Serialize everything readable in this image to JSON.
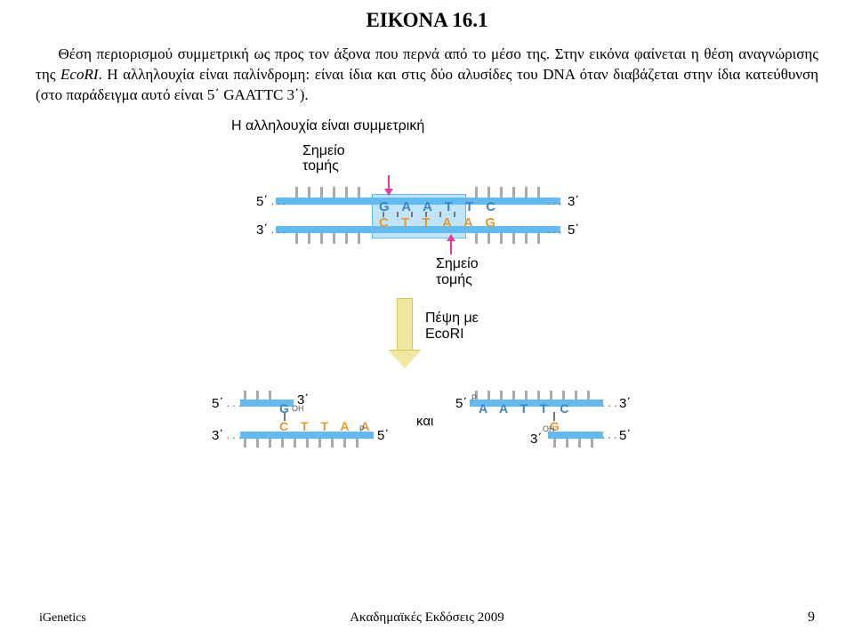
{
  "title": "ΕΙΚΟΝΑ 16.1",
  "paragraph": "Θέση περιορισμού συμμετρική ως προς τον άξονα που περνά από το μέσο της. Στην εικόνα φαίνεται η θέση αναγνώρισης της ",
  "ecoRI": "EcoRI",
  "paragraph2": ". Η αλληλουχία είναι παλίνδρομη: είναι ίδια και στις δύο αλυσίδες του DNA όταν διαβάζεται στην ίδια κατεύθυνση (στο παράδειγμα αυτό είναι 5΄ GAATTC 3΄).",
  "symmetric_label": "Η αλληλουχία είναι συμμετρική",
  "cut_label": "Σημείο\nτομής",
  "seq_top": "G A A T T C",
  "seq_bot": "C T T A A G",
  "digest_label": "Πέψη με\nEcoRI",
  "and": "και",
  "five": "5΄",
  "three": "3΄",
  "G": "G",
  "OH": "OH",
  "P": "P",
  "left_frag_bot": "C T T A A",
  "right_frag_top": "A A T T C",
  "colors": {
    "strand": "#61baf0",
    "box": "#c0e4f9",
    "arrow": "#e53aa0",
    "big": "#f2e79e",
    "bigborder": "#d4c65a",
    "grey": "#a9a9a9"
  },
  "tick_spacing": 14,
  "footer_l": "iGenetics",
  "footer_c": "Ακαδημαϊκές Εκδόσεις 2009",
  "footer_r": "9"
}
